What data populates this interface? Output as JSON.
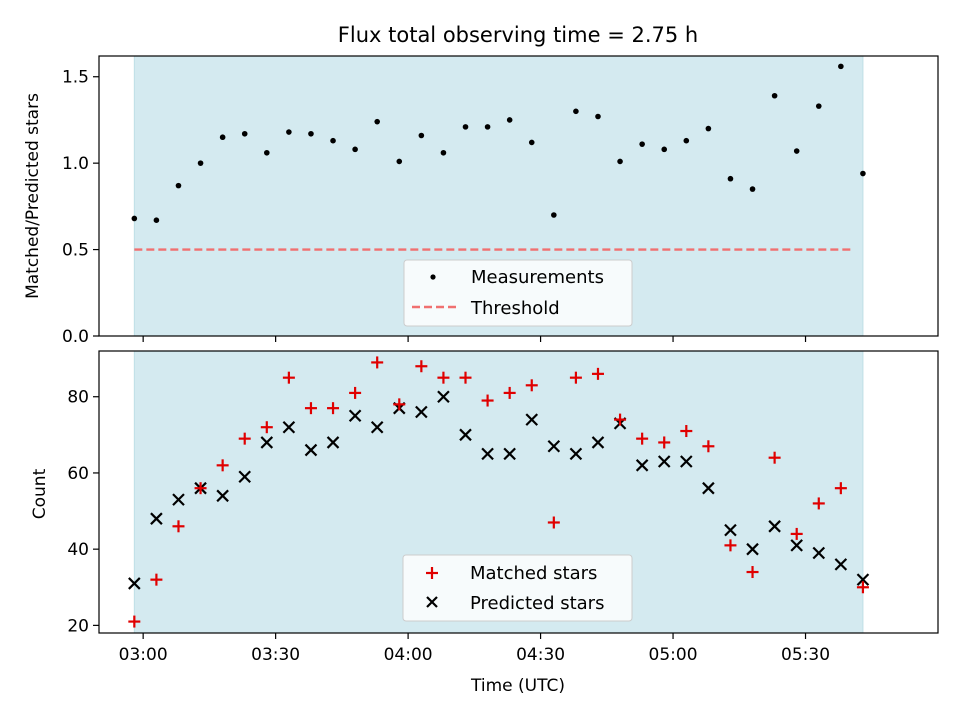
{
  "colors": {
    "band": "#d4eaf0",
    "band_edge": "#bfdfe6",
    "threshold": "#f07070",
    "matched": "#e00000",
    "predicted": "#000000",
    "measurement": "#000000"
  },
  "chart_data": [
    {
      "type": "scatter",
      "title": "Flux total observing time = 2.75 h",
      "ylabel": "Matched/Predicted stars",
      "ylim": [
        0,
        1.62
      ],
      "yticks": [
        0.0,
        0.5,
        1.0,
        1.5
      ],
      "ytick_labels": [
        "0.0",
        "0.5",
        "1.0",
        "1.5"
      ],
      "xlim": [
        "02:50",
        "06:00"
      ],
      "shaded_interval": [
        "02:58",
        "05:43"
      ],
      "legend_position": "lower center",
      "series": [
        {
          "name": "Measurements",
          "marker": "dot",
          "x": [
            "02:58",
            "03:03",
            "03:08",
            "03:13",
            "03:18",
            "03:23",
            "03:28",
            "03:33",
            "03:38",
            "03:43",
            "03:48",
            "03:53",
            "03:58",
            "04:03",
            "04:08",
            "04:13",
            "04:18",
            "04:23",
            "04:28",
            "04:33",
            "04:38",
            "04:43",
            "04:48",
            "04:53",
            "04:58",
            "05:03",
            "05:08",
            "05:13",
            "05:18",
            "05:23",
            "05:28",
            "05:33",
            "05:38",
            "05:43"
          ],
          "values": [
            0.68,
            0.67,
            0.87,
            1.0,
            1.15,
            1.17,
            1.06,
            1.18,
            1.17,
            1.13,
            1.08,
            1.24,
            1.01,
            1.16,
            1.06,
            1.21,
            1.21,
            1.25,
            1.12,
            0.7,
            1.3,
            1.27,
            1.01,
            1.11,
            1.08,
            1.13,
            1.2,
            0.91,
            0.85,
            1.39,
            1.07,
            1.33,
            1.56,
            0.94
          ]
        },
        {
          "name": "Threshold",
          "marker": "dashed-line",
          "value": 0.5
        }
      ]
    },
    {
      "type": "scatter",
      "ylabel": "Count",
      "xlabel": "Time (UTC)",
      "ylim": [
        18,
        92
      ],
      "yticks": [
        20,
        40,
        60,
        80
      ],
      "ytick_labels": [
        "20",
        "40",
        "60",
        "80"
      ],
      "xlim": [
        "02:50",
        "06:00"
      ],
      "xtick_labels": [
        "03:00",
        "03:30",
        "04:00",
        "04:30",
        "05:00",
        "05:30"
      ],
      "shaded_interval": [
        "02:58",
        "05:43"
      ],
      "legend_position": "lower center",
      "series": [
        {
          "name": "Matched stars",
          "marker": "plus",
          "x": [
            "02:58",
            "03:03",
            "03:08",
            "03:13",
            "03:18",
            "03:23",
            "03:28",
            "03:33",
            "03:38",
            "03:43",
            "03:48",
            "03:53",
            "03:58",
            "04:03",
            "04:08",
            "04:13",
            "04:18",
            "04:23",
            "04:28",
            "04:33",
            "04:38",
            "04:43",
            "04:48",
            "04:53",
            "04:58",
            "05:03",
            "05:08",
            "05:13",
            "05:18",
            "05:23",
            "05:28",
            "05:33",
            "05:38",
            "05:43"
          ],
          "values": [
            21,
            32,
            46,
            56,
            62,
            69,
            72,
            85,
            77,
            77,
            81,
            89,
            78,
            88,
            85,
            85,
            79,
            81,
            83,
            47,
            85,
            86,
            74,
            69,
            68,
            71,
            67,
            41,
            34,
            64,
            44,
            52,
            56,
            30
          ]
        },
        {
          "name": "Predicted stars",
          "marker": "x",
          "x": [
            "02:58",
            "03:03",
            "03:08",
            "03:13",
            "03:18",
            "03:23",
            "03:28",
            "03:33",
            "03:38",
            "03:43",
            "03:48",
            "03:53",
            "03:58",
            "04:03",
            "04:08",
            "04:13",
            "04:18",
            "04:23",
            "04:28",
            "04:33",
            "04:38",
            "04:43",
            "04:48",
            "04:53",
            "04:58",
            "05:03",
            "05:08",
            "05:13",
            "05:18",
            "05:23",
            "05:28",
            "05:33",
            "05:38",
            "05:43"
          ],
          "values": [
            31,
            48,
            53,
            56,
            54,
            59,
            68,
            72,
            66,
            68,
            75,
            72,
            77,
            76,
            80,
            70,
            65,
            65,
            74,
            67,
            65,
            68,
            73,
            62,
            63,
            63,
            56,
            45,
            40,
            46,
            41,
            39,
            36,
            32
          ]
        }
      ]
    }
  ]
}
